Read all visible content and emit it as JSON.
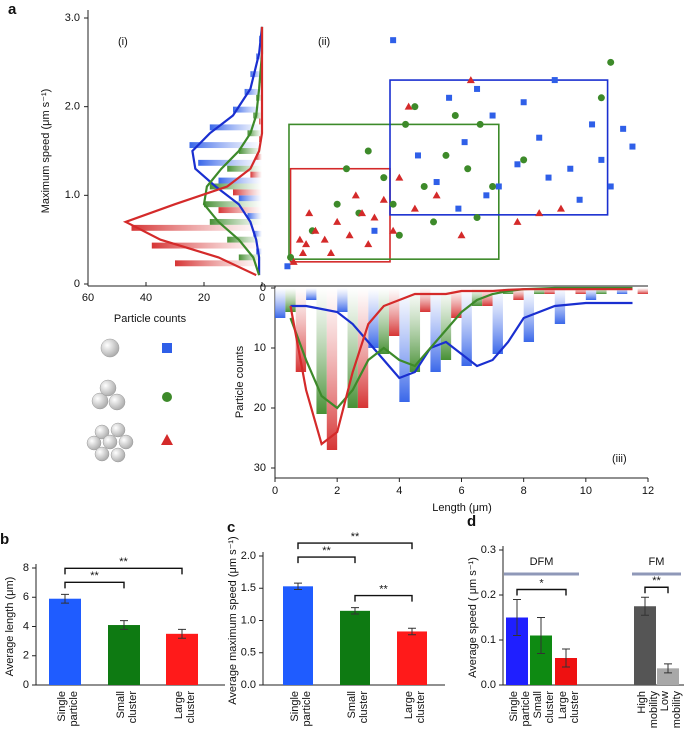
{
  "chart_data": [
    {
      "type": "scatter",
      "panel": "a",
      "label": "(ii)",
      "xlabel": "Length (μm)",
      "ylabel": "Maximum  speed (μm s⁻¹)",
      "xlim": [
        0,
        12
      ],
      "xticks": [
        0,
        2,
        4,
        6,
        8,
        10,
        12
      ],
      "ylim": [
        0,
        3
      ],
      "yticks": [
        0,
        {
          "value": 1,
          "label": "1.0"
        },
        {
          "value": 2,
          "label": "2.0"
        },
        {
          "value": 3,
          "label": "3.0"
        }
      ],
      "series": [
        {
          "marker": "square",
          "color": "#2f5fe8",
          "x": [
            0.4,
            6.1,
            7,
            10.5,
            11.5,
            11.2,
            8.8,
            9.5,
            8,
            6.5,
            7.8,
            9.8,
            7.2,
            5.6,
            3.8,
            10.2,
            6.8,
            8.5,
            5.2,
            9,
            4.6,
            3.2,
            5.9,
            10.8
          ],
          "values": [
            0.2,
            1.6,
            1.9,
            1.4,
            1.55,
            1.75,
            1.2,
            1.3,
            2.05,
            2.2,
            1.35,
            0.95,
            1.1,
            2.1,
            2.75,
            1.8,
            1,
            1.65,
            1.15,
            2.3,
            1.45,
            0.6,
            0.85,
            1.1
          ]
        },
        {
          "marker": "circle",
          "color": "#3d8a2a",
          "x": [
            0.5,
            1.2,
            2.3,
            3,
            4.2,
            4.8,
            5.5,
            6.2,
            7,
            3.8,
            2.7,
            5.1,
            6.6,
            4.5,
            10.8,
            10.5,
            8,
            3.5,
            5.8,
            2,
            6.5,
            4
          ],
          "values": [
            0.3,
            0.6,
            1.3,
            1.5,
            1.8,
            1.1,
            1.45,
            1.3,
            1.1,
            0.9,
            0.8,
            0.7,
            1.8,
            2,
            2.5,
            2.1,
            1.4,
            1.2,
            1.9,
            0.9,
            0.75,
            0.55
          ]
        },
        {
          "marker": "triangle",
          "color": "#d42a2a",
          "x": [
            0.6,
            0.8,
            1,
            1.3,
            1.6,
            2,
            2.4,
            2.8,
            3.2,
            3.5,
            1.1,
            1.8,
            2.6,
            3,
            0.9,
            4,
            4.3,
            6.3,
            4.5,
            5.2,
            7.8,
            8.5,
            9.2,
            6,
            3.8
          ],
          "values": [
            0.25,
            0.5,
            0.45,
            0.6,
            0.5,
            0.7,
            0.55,
            0.8,
            0.75,
            0.95,
            0.8,
            0.35,
            1,
            0.45,
            0.35,
            1.2,
            2,
            2.3,
            0.85,
            1,
            0.7,
            0.8,
            0.85,
            0.55,
            0.6
          ]
        }
      ],
      "boxes": [
        {
          "color": "#d42a2a",
          "x": [
            0.5,
            3.7
          ],
          "y": [
            0.25,
            1.3
          ]
        },
        {
          "color": "#3d8a2a",
          "x": [
            0.45,
            7.2
          ],
          "y": [
            0.28,
            1.8
          ]
        },
        {
          "color": "#1a2fd0",
          "x": [
            3.7,
            10.7
          ],
          "y": [
            0.78,
            2.3
          ]
        }
      ]
    },
    {
      "type": "histogram",
      "orientation": "horizontal",
      "label": "(i)",
      "xlabel": "Particle counts",
      "xlim": [
        60,
        0
      ],
      "xticks": [
        60,
        40,
        20,
        0
      ],
      "bins": [
        0.2,
        0.4,
        0.6,
        0.8,
        1,
        1.2,
        1.4,
        1.6,
        1.8,
        2,
        2.2,
        2.4,
        2.6,
        2.8
      ],
      "series": [
        {
          "color": "#2f5fe8",
          "values": [
            2,
            3,
            5,
            8,
            15,
            22,
            25,
            18,
            10,
            6,
            4,
            2,
            1
          ]
        },
        {
          "color": "#3d8a2a",
          "values": [
            8,
            12,
            18,
            20,
            18,
            12,
            8,
            5,
            3,
            2,
            1,
            0,
            0
          ]
        },
        {
          "color": "#d42a2a",
          "values": [
            30,
            38,
            45,
            15,
            10,
            4,
            2,
            1,
            1,
            0,
            0,
            0,
            0
          ]
        }
      ],
      "fits": [
        {
          "color": "#1a2fd0",
          "x": [
            0.1,
            0.3,
            0.5,
            0.7,
            0.9,
            1.1,
            1.3,
            1.5,
            1.7,
            1.9,
            2.2,
            2.6,
            2.9
          ],
          "values": [
            1,
            1,
            2,
            4,
            8,
            16,
            23,
            24,
            18,
            10,
            4,
            1,
            0
          ]
        },
        {
          "color": "#3d8a2a",
          "x": [
            0.1,
            0.3,
            0.5,
            0.7,
            0.9,
            1.1,
            1.3,
            1.5,
            1.7,
            1.9,
            2.2,
            2.6,
            2.9
          ],
          "values": [
            1,
            3,
            8,
            15,
            20,
            19,
            14,
            8,
            4,
            2,
            1,
            0,
            0
          ]
        },
        {
          "color": "#d42a2a",
          "x": [
            0.1,
            0.3,
            0.5,
            0.7,
            0.9,
            1.1,
            1.3,
            1.5,
            1.7,
            1.9,
            2.2,
            2.6,
            2.9
          ],
          "values": [
            2,
            15,
            35,
            47,
            30,
            12,
            4,
            1,
            0,
            0,
            0,
            0,
            0
          ]
        }
      ]
    },
    {
      "type": "histogram",
      "orientation": "vertical",
      "label": "(iii)",
      "ylabel": "Particle counts",
      "ylim": [
        0,
        30
      ],
      "yticks": [
        0,
        10,
        20,
        30
      ],
      "bins": [
        0,
        1,
        2,
        3,
        4,
        5,
        6,
        7,
        8,
        9,
        10,
        11,
        12
      ],
      "series": [
        {
          "color": "#2f5fe8",
          "values": [
            5,
            2,
            4,
            10,
            19,
            14,
            13,
            11,
            9,
            6,
            2,
            1
          ]
        },
        {
          "color": "#3d8a2a",
          "values": [
            4,
            21,
            20,
            11,
            14,
            12,
            3,
            1,
            1,
            0,
            1,
            0
          ]
        },
        {
          "color": "#d42a2a",
          "values": [
            14,
            27,
            20,
            8,
            4,
            5,
            3,
            2,
            1,
            1,
            0,
            1
          ]
        }
      ],
      "fits": [
        {
          "color": "#1a2fd0",
          "x": [
            0.5,
            1,
            1.5,
            2,
            2.5,
            3,
            3.5,
            4,
            4.5,
            5,
            5.5,
            6,
            6.5,
            7,
            7.5,
            8,
            9,
            10,
            11.5
          ],
          "values": [
            3,
            3,
            3.5,
            4,
            6,
            9,
            12,
            15,
            14,
            10,
            9,
            11,
            13,
            12,
            9,
            5,
            3,
            2.5,
            2.5
          ]
        },
        {
          "color": "#3d8a2a",
          "x": [
            0.5,
            1,
            1.5,
            2,
            2.5,
            3,
            3.5,
            4,
            4.5,
            5,
            5.5,
            6,
            6.5,
            7,
            7.5,
            8,
            9,
            10,
            11.5
          ],
          "values": [
            5,
            12,
            18,
            20,
            17,
            12,
            10,
            12,
            13,
            10,
            7,
            4,
            2,
            1,
            0.5,
            0.2,
            0,
            0,
            0
          ]
        },
        {
          "color": "#d42a2a",
          "x": [
            0.5,
            1,
            1.5,
            2,
            2.5,
            3,
            3.5,
            4,
            4.5,
            5,
            5.5,
            6,
            6.5,
            7,
            7.5,
            8,
            9,
            10,
            11.5
          ],
          "values": [
            3,
            17,
            26,
            24,
            14,
            6,
            3,
            2,
            1,
            1,
            1,
            0.5,
            0.5,
            0.5,
            0.3,
            0.2,
            0.2,
            0.2,
            0.2
          ]
        }
      ]
    },
    {
      "type": "bar",
      "panel": "b",
      "ylabel": "Average length (μm)",
      "categories": [
        "Single particle",
        "Small cluster",
        "Large cluster"
      ],
      "colors": [
        "#1f5cff",
        "#0e7a12",
        "#ff1a1a"
      ],
      "values": [
        5.9,
        4.1,
        3.5
      ],
      "errors": [
        0.3,
        0.3,
        0.3
      ],
      "ylim": [
        0,
        8
      ],
      "yticks": [
        0,
        2,
        4,
        6,
        8
      ],
      "significance": [
        {
          "span": [
            0,
            1
          ],
          "label": "**"
        },
        {
          "span": [
            0,
            2
          ],
          "label": "**"
        }
      ]
    },
    {
      "type": "bar",
      "panel": "c",
      "ylabel": "Average maximum speed (μm s⁻¹)",
      "categories": [
        "Single particle",
        "Small cluster",
        "Large cluster"
      ],
      "colors": [
        "#1f5cff",
        "#0e7a12",
        "#ff1a1a"
      ],
      "values": [
        1.53,
        1.15,
        0.83
      ],
      "errors": [
        0.05,
        0.05,
        0.05
      ],
      "ylim": [
        0,
        2
      ],
      "yticks": [
        {
          "value": 0,
          "label": "0.0"
        },
        {
          "value": 0.5,
          "label": "0.5"
        },
        {
          "value": 1,
          "label": "1.0"
        },
        {
          "value": 1.5,
          "label": "1.5"
        },
        {
          "value": 2,
          "label": "2.0"
        }
      ],
      "significance": [
        {
          "span": [
            1,
            2
          ],
          "label": "**"
        },
        {
          "span": [
            0,
            1
          ],
          "label": "**"
        },
        {
          "span": [
            0,
            2
          ],
          "label": "**"
        }
      ]
    },
    {
      "type": "bar",
      "panel": "d",
      "ylabel": "Average speed ( μm s⁻¹)",
      "categories": [
        "Single particle",
        "Small cluster",
        "Large cluster",
        "High mobility",
        "Low mobility"
      ],
      "colors": [
        "#1f1fff",
        "#0e8a12",
        "#ee1111",
        "#555555",
        "#a8a8a8"
      ],
      "values": [
        0.15,
        0.11,
        0.06,
        0.175,
        0.037
      ],
      "errors": [
        0.04,
        0.04,
        0.02,
        0.02,
        0.01
      ],
      "ylim": [
        0,
        0.3
      ],
      "yticks": [
        {
          "value": 0,
          "label": "0.0"
        },
        0.1,
        0.2,
        0.3
      ],
      "groups": [
        {
          "span": [
            0,
            2
          ],
          "label": "DFM"
        },
        {
          "span": [
            3,
            4
          ],
          "label": "FM"
        }
      ],
      "significance": [
        {
          "span": [
            0,
            2
          ],
          "label": "*"
        },
        {
          "span": [
            3,
            4
          ],
          "label": "**"
        }
      ]
    }
  ]
}
